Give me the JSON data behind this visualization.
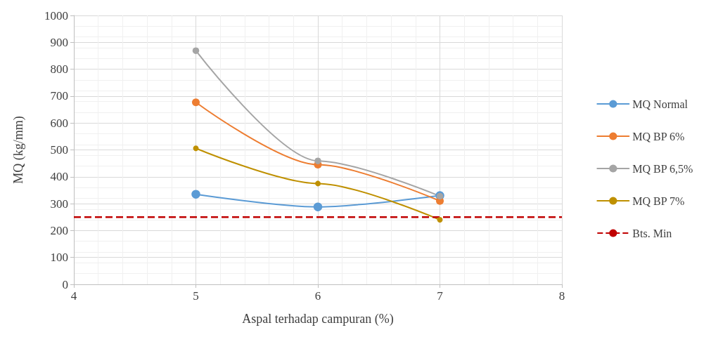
{
  "chart_data": {
    "type": "line",
    "xlabel": "Aspal terhadap campuran (%)",
    "ylabel": "MQ (kg/mm)",
    "x": [
      5,
      6,
      7
    ],
    "series": [
      {
        "name": "MQ Normal",
        "color": "#5b9bd5",
        "values": [
          335,
          288,
          330
        ]
      },
      {
        "name": "MQ BP 6%",
        "color": "#ed7d31",
        "values": [
          677,
          445,
          310
        ]
      },
      {
        "name": "MQ BP 6,5%",
        "color": "#a5a5a5",
        "values": [
          869,
          459,
          328
        ]
      },
      {
        "name": "MQ BP 7%",
        "color": "#bf9000",
        "values": [
          506,
          375,
          240
        ]
      }
    ],
    "ref_lines": [
      {
        "axis": "y",
        "value": 250,
        "label": "Bts. Min",
        "color": "#c00000",
        "line_style": "dashed"
      }
    ],
    "xlim": [
      4,
      8
    ],
    "xticks": [
      4,
      5,
      6,
      7,
      8
    ],
    "ylim": [
      0,
      1000
    ],
    "yticks": [
      0,
      100,
      200,
      300,
      400,
      500,
      600,
      700,
      800,
      900,
      1000
    ],
    "grid": true,
    "legend": "right",
    "marker": "circle",
    "line_style": "solid"
  }
}
